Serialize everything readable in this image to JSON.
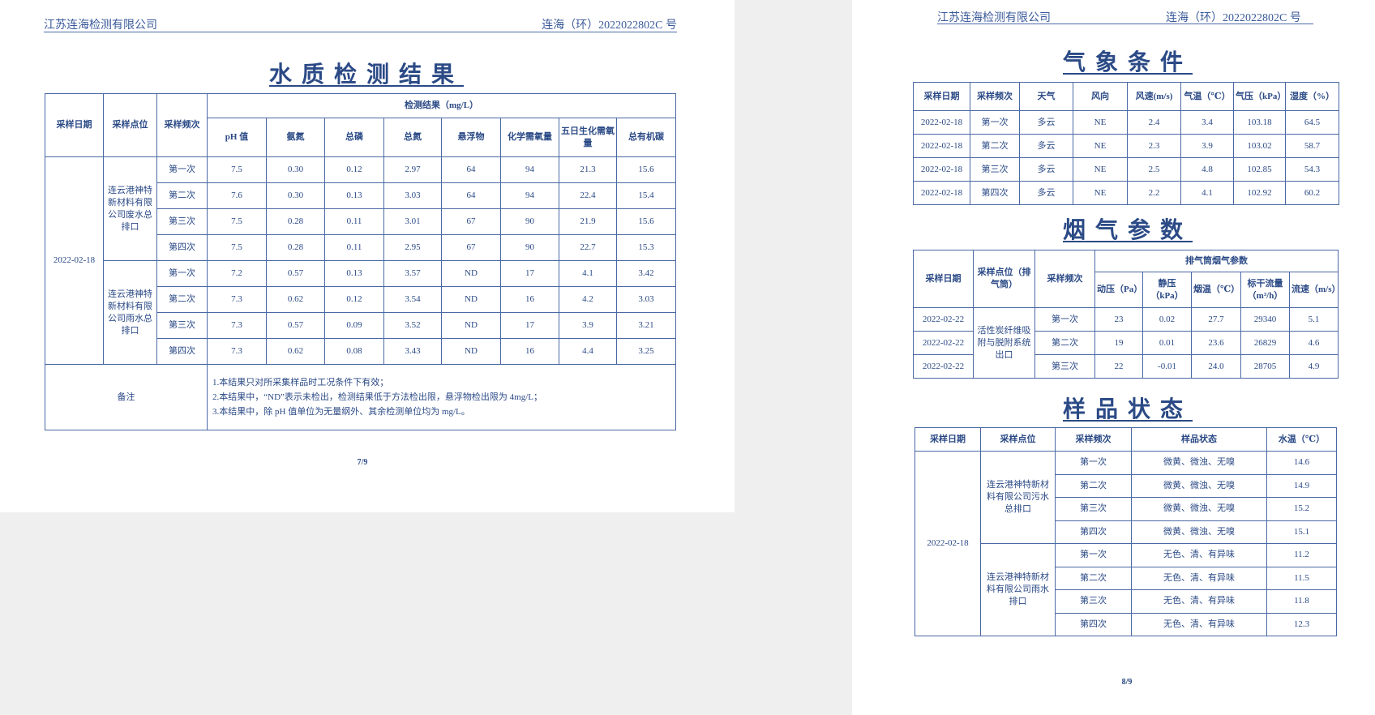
{
  "left_page": {
    "header": {
      "company": "江苏连海检测有限公司",
      "report_no": "连海（环）2022022802C 号"
    },
    "title": "水质检测结果",
    "table": {
      "fixed_headers": [
        "采样日期",
        "采样点位",
        "采样频次"
      ],
      "group_header": "检测结果（mg/L）",
      "columns": [
        "pH 值",
        "氨氮",
        "总磷",
        "总氮",
        "悬浮物",
        "化学需氧量",
        "五日生化需氧量",
        "总有机碳"
      ],
      "date": "2022-02-18",
      "sites": [
        {
          "name": "连云港神特新材料有限公司废水总排口",
          "rows": [
            {
              "freq": "第一次",
              "values": [
                "7.5",
                "0.30",
                "0.12",
                "2.97",
                "64",
                "94",
                "21.3",
                "15.6"
              ]
            },
            {
              "freq": "第二次",
              "values": [
                "7.6",
                "0.30",
                "0.13",
                "3.03",
                "64",
                "94",
                "22.4",
                "15.4"
              ]
            },
            {
              "freq": "第三次",
              "values": [
                "7.5",
                "0.28",
                "0.11",
                "3.01",
                "67",
                "90",
                "21.9",
                "15.6"
              ]
            },
            {
              "freq": "第四次",
              "values": [
                "7.5",
                "0.28",
                "0.11",
                "2.95",
                "67",
                "90",
                "22.7",
                "15.3"
              ]
            }
          ]
        },
        {
          "name": "连云港神特新材料有限公司雨水总排口",
          "rows": [
            {
              "freq": "第一次",
              "values": [
                "7.2",
                "0.57",
                "0.13",
                "3.57",
                "ND",
                "17",
                "4.1",
                "3.42"
              ]
            },
            {
              "freq": "第二次",
              "values": [
                "7.3",
                "0.62",
                "0.12",
                "3.54",
                "ND",
                "16",
                "4.2",
                "3.03"
              ]
            },
            {
              "freq": "第三次",
              "values": [
                "7.3",
                "0.57",
                "0.09",
                "3.52",
                "ND",
                "17",
                "3.9",
                "3.21"
              ]
            },
            {
              "freq": "第四次",
              "values": [
                "7.3",
                "0.62",
                "0.08",
                "3.43",
                "ND",
                "16",
                "4.4",
                "3.25"
              ]
            }
          ]
        }
      ],
      "remarks_label": "备注",
      "remarks": [
        "1.本结果只对所采集样品时工况条件下有效；",
        "2.本结果中，“ND”表示未检出，检测结果低于方法检出限，悬浮物检出限为 4mg/L；",
        "3.本结果中，除 pH 值单位为无量纲外、其余检测单位均为 mg/L。"
      ]
    },
    "page_number": "7/9"
  },
  "right_page": {
    "header": {
      "company": "江苏连海检测有限公司",
      "report_no": "连海（环）2022022802C 号"
    },
    "weather": {
      "title": "气象条件",
      "columns": [
        "采样日期",
        "采样频次",
        "天气",
        "风向",
        "风速(m/s)",
        "气温（℃）",
        "气压（kPa）",
        "湿度（%）"
      ],
      "rows": [
        [
          "2022-02-18",
          "第一次",
          "多云",
          "NE",
          "2.4",
          "3.4",
          "103.18",
          "64.5"
        ],
        [
          "2022-02-18",
          "第二次",
          "多云",
          "NE",
          "2.3",
          "3.9",
          "103.02",
          "58.7"
        ],
        [
          "2022-02-18",
          "第三次",
          "多云",
          "NE",
          "2.5",
          "4.8",
          "102.85",
          "54.3"
        ],
        [
          "2022-02-18",
          "第四次",
          "多云",
          "NE",
          "2.2",
          "4.1",
          "102.92",
          "60.2"
        ]
      ]
    },
    "flue_gas": {
      "title": "烟气参数",
      "fixed_headers": [
        "采样日期",
        "采样点位（排气筒）",
        "采样频次"
      ],
      "group_header": "排气筒烟气参数",
      "columns": [
        "动压（Pa）",
        "静压（kPa）",
        "烟温（℃）",
        "标干流量（m³/h）",
        "流速（m/s）"
      ],
      "site": "活性炭纤维吸附与脱附系统出口",
      "rows": [
        {
          "date": "2022-02-22",
          "freq": "第一次",
          "values": [
            "23",
            "0.02",
            "27.7",
            "29340",
            "5.1"
          ]
        },
        {
          "date": "2022-02-22",
          "freq": "第二次",
          "values": [
            "19",
            "0.01",
            "23.6",
            "26829",
            "4.6"
          ]
        },
        {
          "date": "2022-02-22",
          "freq": "第三次",
          "values": [
            "22",
            "-0.01",
            "24.0",
            "28705",
            "4.9"
          ]
        }
      ]
    },
    "sample_status": {
      "title": "样品状态",
      "columns": [
        "采样日期",
        "采样点位",
        "采样频次",
        "样品状态",
        "水温（℃）"
      ],
      "date": "2022-02-18",
      "sites": [
        {
          "name": "连云港神特新材料有限公司污水总排口",
          "rows": [
            [
              "第一次",
              "微黄、微浊、无嗅",
              "14.6"
            ],
            [
              "第二次",
              "微黄、微浊、无嗅",
              "14.9"
            ],
            [
              "第三次",
              "微黄、微浊、无嗅",
              "15.2"
            ],
            [
              "第四次",
              "微黄、微浊、无嗅",
              "15.1"
            ]
          ]
        },
        {
          "name": "连云港神特新材料有限公司雨水排口",
          "rows": [
            [
              "第一次",
              "无色、清、有异味",
              "11.2"
            ],
            [
              "第二次",
              "无色、清、有异味",
              "11.5"
            ],
            [
              "第三次",
              "无色、清、有异味",
              "11.8"
            ],
            [
              "第四次",
              "无色、清、有异味",
              "12.3"
            ]
          ]
        }
      ]
    },
    "page_number": "8/9"
  }
}
